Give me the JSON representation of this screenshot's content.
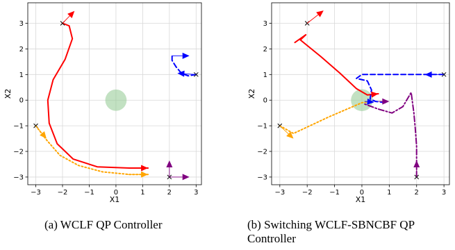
{
  "chart_data": [
    {
      "type": "line",
      "caption": "(a) WCLF QP Controller",
      "xlabel": "X1",
      "ylabel": "X2",
      "xlim": [
        -3.3,
        3.2
      ],
      "ylim": [
        -3.3,
        3.8
      ],
      "xticks": [
        -3,
        -2,
        -1,
        0,
        1,
        2,
        3
      ],
      "yticks": [
        -3,
        -2,
        -1,
        0,
        1,
        2,
        3
      ],
      "grid": true,
      "obstacle": {
        "center": [
          0,
          0
        ],
        "radius": 0.4,
        "color": "#8fc88f"
      },
      "series": [
        {
          "color": "#ff0000",
          "style": "solid",
          "points": [
            [
              -2,
              3
            ],
            [
              -1.75,
              2.9
            ],
            [
              -1.63,
              2.4
            ],
            [
              -1.9,
              1.6
            ],
            [
              -2.35,
              0.8
            ],
            [
              -2.55,
              0
            ],
            [
              -2.5,
              -0.9
            ],
            [
              -2.2,
              -1.7
            ],
            [
              -1.6,
              -2.3
            ],
            [
              -0.7,
              -2.6
            ],
            [
              0.5,
              -2.65
            ],
            [
              1.2,
              -2.65
            ]
          ],
          "start": [
            -2,
            3
          ],
          "arrow_from": [
            -2,
            3
          ],
          "arrow_to": [
            -1.55,
            3.48
          ]
        },
        {
          "color": "#ffa500",
          "style": "dotted",
          "points": [
            [
              -3,
              -1
            ],
            [
              -2.6,
              -1.55
            ],
            [
              -2.1,
              -2.15
            ],
            [
              -1.4,
              -2.55
            ],
            [
              -0.5,
              -2.8
            ],
            [
              0.5,
              -2.9
            ],
            [
              1.2,
              -2.9
            ]
          ],
          "start": [
            -3,
            -1
          ],
          "arrow_from": [
            -3,
            -1
          ],
          "arrow_to": [
            -2.6,
            -1.5
          ]
        },
        {
          "color": "#0000ff",
          "style": "dashed",
          "points": [
            [
              3,
              1
            ],
            [
              2.7,
              0.95
            ],
            [
              2.45,
              1.05
            ],
            [
              2.25,
              1.3
            ],
            [
              2.1,
              1.55
            ],
            [
              2.1,
              1.73
            ]
          ],
          "start": [
            3,
            1
          ],
          "arrow_from": [
            3,
            1
          ],
          "arrow_to": [
            2.3,
            1.05
          ]
        },
        {
          "color": "#800080",
          "style": "solid",
          "points": [],
          "start": [
            2,
            -3
          ],
          "arrow_from": [
            2,
            -3
          ],
          "arrow_to": [
            2,
            -2.35
          ]
        }
      ],
      "extra_arrows": [
        {
          "color": "#ff0000",
          "from": [
            0.4,
            -2.65
          ],
          "to": [
            1.2,
            -2.65
          ]
        },
        {
          "color": "#ffa500",
          "from": [
            0.4,
            -2.9
          ],
          "to": [
            1.2,
            -2.9
          ]
        },
        {
          "color": "#0000ff",
          "from": [
            2.1,
            1.73
          ],
          "to": [
            2.75,
            1.73
          ]
        },
        {
          "color": "#800080",
          "from": [
            2,
            -3
          ],
          "to": [
            2.75,
            -3
          ]
        }
      ]
    },
    {
      "type": "line",
      "caption": "(b) Switching WCLF-SBNCBF QP Controller",
      "xlabel": "X1",
      "ylabel": "X2",
      "xlim": [
        -3.3,
        3.2
      ],
      "ylim": [
        -3.3,
        3.8
      ],
      "xticks": [
        -3,
        -2,
        -1,
        0,
        1,
        2,
        3
      ],
      "yticks": [
        -3,
        -2,
        -1,
        0,
        1,
        2,
        3
      ],
      "grid": true,
      "obstacle": {
        "center": [
          0,
          0
        ],
        "radius": 0.4,
        "color": "#8fc88f"
      },
      "series": [
        {
          "color": "#ff0000",
          "style": "solid",
          "points": [
            [
              -2.45,
              2.25
            ],
            [
              -2.05,
              2.55
            ],
            [
              -2.25,
              2.35
            ],
            [
              -1.5,
              1.7
            ],
            [
              -0.8,
              1.05
            ],
            [
              -0.2,
              0.45
            ],
            [
              0.2,
              0.2
            ],
            [
              0.6,
              0.25
            ]
          ],
          "start": [
            -2,
            3
          ],
          "arrow_from": [
            -2,
            3
          ],
          "arrow_to": [
            -1.4,
            3.5
          ]
        },
        {
          "color": "#ffa500",
          "style": "dotted",
          "points": [
            [
              -3,
              -1
            ],
            [
              -2.5,
              -1.3
            ],
            [
              -1.2,
              -0.65
            ],
            [
              0,
              -0.1
            ],
            [
              0.3,
              -0.05
            ]
          ],
          "start": [
            -3,
            -1
          ],
          "arrow_from": [
            -3,
            -1
          ],
          "arrow_to": [
            -2.5,
            -1.5
          ]
        },
        {
          "color": "#0000ff",
          "style": "dashed",
          "points": [
            [
              3,
              1
            ],
            [
              2.3,
              1
            ],
            [
              0,
              1
            ],
            [
              -0.2,
              0.85
            ],
            [
              0.2,
              0.75
            ],
            [
              0.35,
              0.4
            ],
            [
              0.3,
              0.05
            ],
            [
              0.5,
              -0.05
            ],
            [
              0.9,
              -0.1
            ]
          ],
          "start": [
            3,
            1
          ],
          "arrow_from": [
            3,
            1
          ],
          "arrow_to": [
            2.3,
            1
          ]
        },
        {
          "color": "#800080",
          "style": "dashdot",
          "points": [
            [
              2,
              -3
            ],
            [
              2,
              -2.4
            ],
            [
              2,
              -1.8
            ],
            [
              1.95,
              -1.1
            ],
            [
              1.9,
              -0.5
            ],
            [
              1.8,
              0.3
            ],
            [
              1.5,
              -0.25
            ],
            [
              1.1,
              -0.5
            ],
            [
              0.6,
              -0.35
            ],
            [
              0.1,
              -0.15
            ]
          ],
          "start": [
            2,
            -3
          ],
          "arrow_from": [
            2,
            -3
          ],
          "arrow_to": [
            2,
            -2.35
          ]
        }
      ],
      "extra_arrows": [
        {
          "color": "#ff0000",
          "from": [
            0.2,
            0.2
          ],
          "to": [
            0.6,
            0.25
          ]
        },
        {
          "color": "#800080",
          "from": [
            0.6,
            -0.05
          ],
          "to": [
            1,
            -0.05
          ]
        },
        {
          "color": "#0000ff",
          "from": [
            0.1,
            -0.05
          ],
          "to": [
            0.45,
            -0.08
          ]
        }
      ]
    }
  ]
}
